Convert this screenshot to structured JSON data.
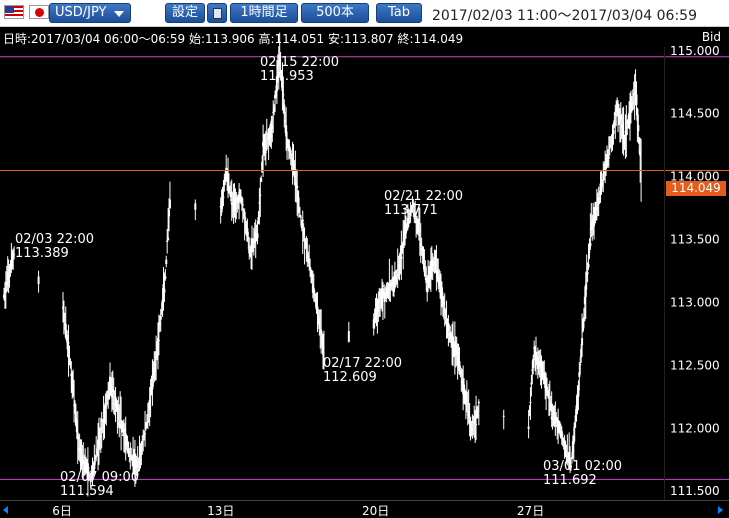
{
  "toolbar": {
    "pair": "USD/JPY",
    "settings": "設定",
    "interval": "1時間足",
    "bars": "500本",
    "tab": "Tab",
    "range": "2017/02/03 11:00～2017/03/04 06:59"
  },
  "info_line": "日時:2017/03/04 06:00～06:59 始:113.906 高:114.051 安:113.807 終:114.049",
  "bid_label": "Bid",
  "icons": {
    "flag_us": "us-flag-icon",
    "flag_jp": "jp-flag-icon",
    "calc": "calculator-icon"
  },
  "colors": {
    "background": "#000000",
    "candle": "#ffffff",
    "guide_line": "#cc44cc",
    "current_line": "#e65c1d",
    "button": "#1b4f99"
  },
  "chart_data": {
    "type": "line",
    "title": "USD/JPY",
    "x_unit": "hourly bars",
    "y_ticks": [
      "115.000",
      "114.500",
      "114.000",
      "113.500",
      "113.000",
      "112.500",
      "112.000",
      "111.500"
    ],
    "x_ticks": [
      {
        "label": "6日",
        "date": "2017-02-06"
      },
      {
        "label": "13日",
        "date": "2017-02-13"
      },
      {
        "label": "20日",
        "date": "2017-02-20"
      },
      {
        "label": "27日",
        "date": "2017-02-27"
      }
    ],
    "ylim": [
      111.43,
      115.03
    ],
    "max_line": 114.953,
    "min_line": 111.594,
    "current_price": "114.049",
    "annotations": [
      {
        "datetime": "02/03 22:00",
        "value": "113.389"
      },
      {
        "datetime": "02/07 09:00",
        "value": "111.594"
      },
      {
        "datetime": "02/15 22:00",
        "value": "114.953"
      },
      {
        "datetime": "02/17 22:00",
        "value": "112.609"
      },
      {
        "datetime": "02/21 22:00",
        "value": "113.771"
      },
      {
        "datetime": "03/01 02:00",
        "value": "111.692"
      }
    ],
    "series": [
      {
        "name": "USD/JPY",
        "points": [
          [
            "2017-02-03 11:00",
            113.05
          ],
          [
            "2017-02-03 22:00",
            113.389
          ],
          [
            "2017-02-06 03:00",
            112.95
          ],
          [
            "2017-02-06 12:00",
            112.45
          ],
          [
            "2017-02-06 20:00",
            111.85
          ],
          [
            "2017-02-07 09:00",
            111.594
          ],
          [
            "2017-02-07 20:00",
            111.95
          ],
          [
            "2017-02-08 06:00",
            112.35
          ],
          [
            "2017-02-08 16:00",
            112.1
          ],
          [
            "2017-02-09 03:00",
            111.8
          ],
          [
            "2017-02-09 12:00",
            111.68
          ],
          [
            "2017-02-09 22:00",
            112.05
          ],
          [
            "2017-02-10 08:00",
            112.55
          ],
          [
            "2017-02-10 18:00",
            113.2
          ],
          [
            "2017-02-10 23:00",
            113.8
          ],
          [
            "2017-02-13 06:00",
            113.7
          ],
          [
            "2017-02-13 12:00",
            114.05
          ],
          [
            "2017-02-13 20:00",
            113.75
          ],
          [
            "2017-02-14 04:00",
            113.85
          ],
          [
            "2017-02-14 14:00",
            113.4
          ],
          [
            "2017-02-14 22:00",
            113.55
          ],
          [
            "2017-02-15 04:00",
            114.2
          ],
          [
            "2017-02-15 14:00",
            114.4
          ],
          [
            "2017-02-15 22:00",
            114.953
          ],
          [
            "2017-02-16 06:00",
            114.3
          ],
          [
            "2017-02-16 14:00",
            114.05
          ],
          [
            "2017-02-16 20:00",
            113.7
          ],
          [
            "2017-02-17 04:00",
            113.4
          ],
          [
            "2017-02-17 12:00",
            113.05
          ],
          [
            "2017-02-17 22:00",
            112.609
          ],
          [
            "2017-02-20 04:00",
            112.85
          ],
          [
            "2017-02-20 12:00",
            113.05
          ],
          [
            "2017-02-20 20:00",
            113.1
          ],
          [
            "2017-02-21 06:00",
            113.2
          ],
          [
            "2017-02-21 14:00",
            113.55
          ],
          [
            "2017-02-21 22:00",
            113.771
          ],
          [
            "2017-02-22 06:00",
            113.55
          ],
          [
            "2017-02-22 14:00",
            113.15
          ],
          [
            "2017-02-22 22:00",
            113.35
          ],
          [
            "2017-02-23 06:00",
            113.05
          ],
          [
            "2017-02-23 14:00",
            112.75
          ],
          [
            "2017-02-23 22:00",
            112.6
          ],
          [
            "2017-02-24 06:00",
            112.3
          ],
          [
            "2017-02-24 14:00",
            112.0
          ],
          [
            "2017-02-24 22:00",
            112.15
          ],
          [
            "2017-02-27 04:00",
            112.05
          ],
          [
            "2017-02-27 10:00",
            112.6
          ],
          [
            "2017-02-27 20:00",
            112.45
          ],
          [
            "2017-02-28 06:00",
            112.1
          ],
          [
            "2017-02-28 14:00",
            112.0
          ],
          [
            "2017-03-01 02:00",
            111.692
          ],
          [
            "2017-03-01 10:00",
            112.3
          ],
          [
            "2017-03-01 18:00",
            113.1
          ],
          [
            "2017-03-02 00:00",
            113.6
          ],
          [
            "2017-03-02 08:00",
            113.8
          ],
          [
            "2017-03-02 16:00",
            114.1
          ],
          [
            "2017-03-02 22:00",
            114.3
          ],
          [
            "2017-03-03 04:00",
            114.55
          ],
          [
            "2017-03-03 12:00",
            114.3
          ],
          [
            "2017-03-03 20:00",
            114.55
          ],
          [
            "2017-03-04 00:00",
            114.7
          ],
          [
            "2017-03-04 06:00",
            114.049
          ]
        ]
      }
    ],
    "grid": false,
    "legend": "none"
  }
}
